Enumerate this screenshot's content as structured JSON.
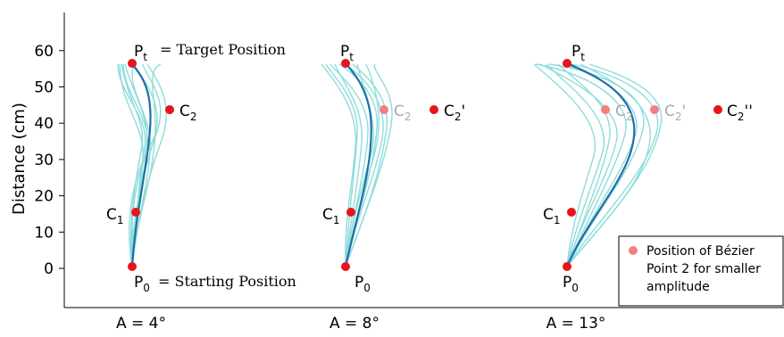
{
  "chart_data": {
    "type": "line",
    "ylabel": "Distance (cm)",
    "ylim": [
      -3,
      70
    ],
    "yticks": [
      0,
      10,
      20,
      30,
      40,
      50,
      60
    ],
    "xticks": [
      "A = 4°",
      "A = 8°",
      "A = 13°"
    ],
    "panels": [
      {
        "label": "A = 4°",
        "P0": {
          "y": 0.5
        },
        "Pt": {
          "y": 56.5
        },
        "C1": {
          "y": 15.5
        },
        "C2": {
          "y": 43.8
        },
        "annotations": {
          "pt_suffix": "= Target Position",
          "p0_suffix": "= Starting Position"
        }
      },
      {
        "label": "A = 8°",
        "P0": {
          "y": 0.5
        },
        "Pt": {
          "y": 56.5
        },
        "C1": {
          "y": 15.5
        },
        "C2_faded": {
          "y": 43.8
        },
        "C2_prime": {
          "y": 43.8
        }
      },
      {
        "label": "A = 13°",
        "P0": {
          "y": 0.5
        },
        "Pt": {
          "y": 56.5
        },
        "C1": {
          "y": 15.5
        },
        "C2_faded": {
          "y": 43.8
        },
        "C2_prime_faded": {
          "y": 43.8
        },
        "C2_double_prime": {
          "y": 43.8
        }
      }
    ],
    "point_labels": {
      "P": "P",
      "t": "t",
      "zero": "0",
      "C": "C",
      "one": "1",
      "two": "2",
      "prime": "'",
      "double_prime": "''"
    },
    "legend": {
      "placement": "bottom-right",
      "lines": [
        "Position of Bézier",
        "Point 2 for smaller",
        "amplitude"
      ]
    },
    "colors": {
      "control_point": "#e8141b",
      "faded_point": "#f08080",
      "trial_traces": "#7ad7d4",
      "mean_path": "#1f6fa9",
      "faded_label": "#a8a8a8"
    }
  }
}
